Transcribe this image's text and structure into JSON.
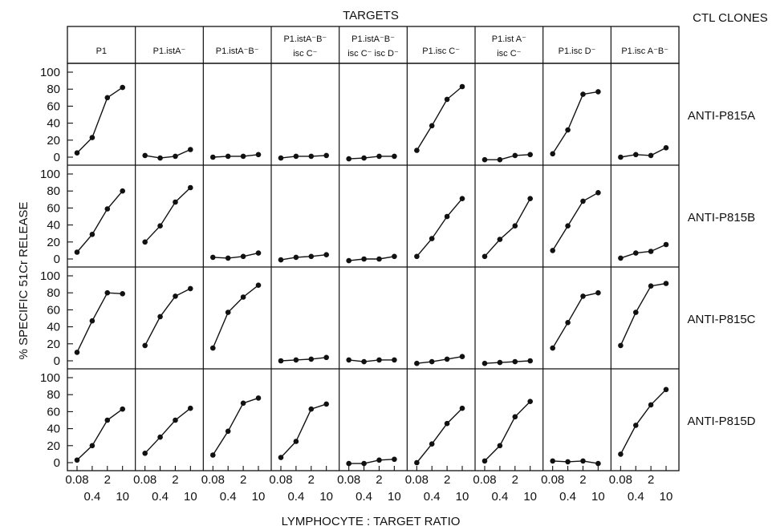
{
  "chart_data": {
    "type": "line",
    "title": "TARGETS",
    "column_group_label": "CTL CLONES",
    "ylabel": "% SPECIFIC 51Cr RELEASE",
    "xlabel": "LYMPHOCYTE : TARGET RATIO",
    "x": [
      0.08,
      0.4,
      2,
      10
    ],
    "x_tick_labels_lower": [
      "0.08",
      "2"
    ],
    "x_tick_labels_upper": [
      "0.4",
      "10"
    ],
    "ylim": [
      0,
      100
    ],
    "y_ticks": [
      "0",
      "20",
      "40",
      "60",
      "80",
      "100"
    ],
    "targets": [
      [
        "P1"
      ],
      [
        "P1.istA⁻"
      ],
      [
        "P1.istA⁻B⁻"
      ],
      [
        "P1.istA⁻B⁻",
        "isc C⁻"
      ],
      [
        "P1.istA⁻B⁻",
        "isc C⁻ isc D⁻"
      ],
      [
        "P1.isc C⁻"
      ],
      [
        "P1.ist A⁻",
        "isc C⁻"
      ],
      [
        "P1.isc D⁻"
      ],
      [
        "P1.isc A⁻B⁻"
      ]
    ],
    "clones": [
      "ANTI-P815A",
      "ANTI-P815B",
      "ANTI-P815C",
      "ANTI-P815D"
    ],
    "values": [
      [
        [
          5,
          23,
          70,
          82
        ],
        [
          2,
          -1,
          1,
          9
        ],
        [
          0,
          1,
          1,
          3
        ],
        [
          -1,
          1,
          1,
          2
        ],
        [
          -2,
          -1,
          1,
          1
        ],
        [
          8,
          37,
          68,
          83
        ],
        [
          -3,
          -3,
          2,
          3
        ],
        [
          4,
          32,
          74,
          77
        ],
        [
          0,
          3,
          2,
          11
        ]
      ],
      [
        [
          8,
          29,
          59,
          80
        ],
        [
          20,
          39,
          67,
          84
        ],
        [
          2,
          1,
          3,
          7
        ],
        [
          -1,
          2,
          3,
          5
        ],
        [
          -2,
          0,
          0,
          3
        ],
        [
          3,
          24,
          50,
          71
        ],
        [
          3,
          23,
          39,
          71
        ],
        [
          10,
          39,
          68,
          78
        ],
        [
          1,
          7,
          9,
          17
        ]
      ],
      [
        [
          10,
          47,
          80,
          79
        ],
        [
          18,
          52,
          76,
          85
        ],
        [
          15,
          57,
          75,
          89
        ],
        [
          0,
          1,
          2,
          4
        ],
        [
          1,
          -1,
          1,
          1
        ],
        [
          -3,
          -1,
          2,
          5
        ],
        [
          -3,
          -2,
          -1,
          0
        ],
        [
          15,
          45,
          76,
          80
        ],
        [
          18,
          57,
          88,
          91
        ]
      ],
      [
        [
          3,
          20,
          50,
          63
        ],
        [
          11,
          30,
          50,
          64
        ],
        [
          9,
          37,
          70,
          76
        ],
        [
          6,
          25,
          63,
          69
        ],
        [
          -1,
          -1,
          3,
          4
        ],
        [
          0,
          22,
          46,
          64
        ],
        [
          2,
          20,
          54,
          72
        ],
        [
          2,
          1,
          2,
          -1
        ],
        [
          10,
          44,
          68,
          86
        ]
      ]
    ]
  }
}
